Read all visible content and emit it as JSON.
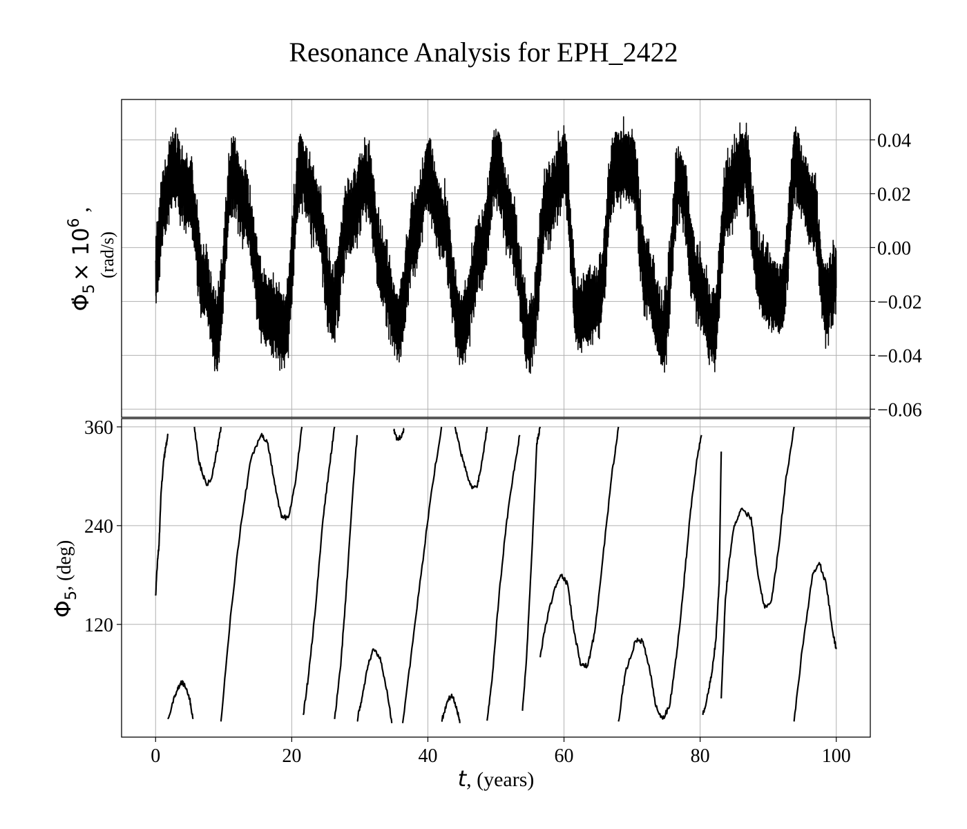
{
  "title": "Resonance Analysis for EPH_2422",
  "chart_data": [
    {
      "type": "line",
      "panel": "top",
      "ylabel_symbol": "Φ̇",
      "ylabel_sub": "5",
      "ylabel_factor": "× 10",
      "ylabel_exp": "6",
      "ylabel_sep": ",",
      "ylabel_units": "(rad/s)",
      "y_axis_position": "right",
      "xlim": [
        -5,
        105
      ],
      "ylim": [
        -0.063,
        0.055
      ],
      "yticks": [
        "0.04",
        "0.02",
        "0.00",
        "−0.02",
        "−0.04",
        "−0.06"
      ],
      "ytick_values": [
        0.04,
        0.02,
        0.0,
        -0.02,
        -0.04,
        -0.06
      ],
      "grid": true,
      "series": [
        {
          "color": "#000000",
          "style": "dense high-frequency oscillation",
          "center_curve": {
            "x": [
              0,
              1.3,
              2.5,
              5,
              7,
              9,
              11.3,
              13,
              16,
              19,
              21.3,
              23.5,
              26,
              28.5,
              31,
              33.5,
              35.5,
              38,
              40,
              42,
              45,
              48,
              50,
              52,
              55,
              57.5,
              60,
              62,
              65,
              67.5,
              70,
              72,
              74.5,
              77,
              79.5,
              82,
              84,
              86.5,
              89,
              92,
              94,
              96.5,
              98.5,
              100
            ],
            "y": [
              -0.008,
              0.018,
              0.03,
              0.02,
              -0.012,
              -0.03,
              0.027,
              0.016,
              -0.023,
              -0.03,
              0.028,
              0.015,
              -0.02,
              0.012,
              0.025,
              -0.01,
              -0.03,
              0.005,
              0.026,
              0.01,
              -0.03,
              0.0,
              0.03,
              0.01,
              -0.033,
              0.015,
              0.03,
              -0.025,
              -0.02,
              0.03,
              0.03,
              -0.01,
              -0.032,
              0.025,
              -0.012,
              -0.03,
              0.02,
              0.031,
              -0.012,
              -0.02,
              0.03,
              0.015,
              -0.02,
              -0.01
            ]
          },
          "envelope_halfwidth": 0.015,
          "extremes": {
            "max": 0.049,
            "min": -0.058
          }
        }
      ]
    },
    {
      "type": "line",
      "panel": "bottom",
      "xlabel_symbol": "t",
      "xlabel_units": ", (years)",
      "ylabel_symbol": "Φ",
      "ylabel_sub": "5",
      "ylabel_units": ", (deg)",
      "xlim": [
        -5,
        105
      ],
      "ylim": [
        -17,
        370
      ],
      "xticks": [
        "0",
        "20",
        "40",
        "60",
        "80",
        "100"
      ],
      "xtick_values": [
        0,
        20,
        40,
        60,
        80,
        100
      ],
      "yticks": [
        "360",
        "240",
        "120"
      ],
      "ytick_values": [
        360,
        240,
        120
      ],
      "grid": true,
      "series": [
        {
          "color": "#000000",
          "segments": [
            {
              "x": [
                0,
                0.3,
                0.5,
                0.8,
                1.2,
                1.6,
                1.8
              ],
              "y": [
                155,
                200,
                215,
                280,
                320,
                340,
                350
              ]
            },
            {
              "x": [
                1.8,
                2.5,
                3.2,
                3.8,
                4.3,
                5.0,
                5.5
              ],
              "y": [
                5,
                25,
                40,
                50,
                45,
                30,
                5
              ]
            },
            {
              "x": [
                5.7,
                6.3,
                7.0,
                7.6,
                8.3,
                9.0,
                9.6
              ],
              "y": [
                360,
                320,
                300,
                290,
                300,
                330,
                360
              ]
            },
            {
              "x": [
                9.6,
                11,
                12.5,
                14,
                15.5,
                16.5,
                17.5,
                18.5,
                19.5,
                20.5,
                21.5
              ],
              "y": [
                2,
                130,
                240,
                320,
                350,
                340,
                290,
                250,
                250,
                290,
                360
              ]
            },
            {
              "x": [
                21.7,
                22.5,
                23.5,
                24.5,
                25.5,
                26.3
              ],
              "y": [
                10,
                60,
                140,
                240,
                310,
                360
              ]
            },
            {
              "x": [
                26.3,
                27.2,
                28.0,
                28.8,
                29.6
              ],
              "y": [
                5,
                70,
                160,
                260,
                350
              ]
            },
            {
              "x": [
                29.6,
                30.3,
                31.2,
                32.0,
                33.0,
                34.0,
                34.7
              ],
              "y": [
                3,
                30,
                70,
                90,
                80,
                40,
                0
              ]
            },
            {
              "x": [
                35.0,
                35.5,
                36.0,
                36.5
              ],
              "y": [
                355,
                345,
                347,
                358
              ]
            },
            {
              "x": [
                36.3,
                37.5,
                39.0,
                40.5,
                42.0
              ],
              "y": [
                0,
                80,
                180,
                280,
                360
              ]
            },
            {
              "x": [
                42.0,
                42.8,
                43.5,
                44.2,
                44.7
              ],
              "y": [
                2,
                25,
                35,
                20,
                0
              ]
            },
            {
              "x": [
                44.0,
                44.8,
                45.8,
                46.5,
                47.3,
                48.0,
                48.7
              ],
              "y": [
                360,
                330,
                300,
                285,
                290,
                320,
                360
              ]
            },
            {
              "x": [
                48.7,
                49.5,
                50.5,
                51.5,
                52.5,
                53.5
              ],
              "y": [
                3,
                60,
                160,
                240,
                300,
                350
              ]
            },
            {
              "x": [
                53.9,
                54.5,
                55.3,
                56.0,
                56.5
              ],
              "y": [
                15,
                80,
                210,
                340,
                360
              ]
            },
            {
              "x": [
                56.5,
                57.3,
                58.5,
                59.5,
                60.5,
                61.5,
                62.5,
                63.5,
                64.5,
                65.7,
                67.0,
                68.0
              ],
              "y": [
                80,
                120,
                160,
                180,
                170,
                110,
                70,
                70,
                110,
                200,
                300,
                360
              ]
            },
            {
              "x": [
                68.0,
                69.0,
                70.5,
                71.5,
                72.5,
                73.5,
                74.5,
                75.5,
                76.5,
                77.5,
                78.5,
                79.5,
                80.2
              ],
              "y": [
                2,
                60,
                100,
                100,
                70,
                20,
                5,
                20,
                80,
                160,
                250,
                320,
                350
              ]
            },
            {
              "x": [
                80.4,
                81.0,
                81.7,
                82.3,
                82.8,
                83.1
              ],
              "y": [
                10,
                30,
                60,
                100,
                170,
                330
              ]
            },
            {
              "x": [
                83.1,
                83.7,
                84.3,
                85.0,
                86.0,
                87.5,
                88.5,
                89.5,
                90.5,
                91.5,
                92.5,
                93.8
              ],
              "y": [
                30,
                150,
                200,
                240,
                260,
                250,
                180,
                140,
                150,
                210,
                290,
                360
              ]
            },
            {
              "x": [
                93.8,
                95.0,
                96.5,
                97.5,
                98.5,
                99.5,
                100
              ],
              "y": [
                2,
                90,
                180,
                195,
                170,
                110,
                90
              ]
            }
          ]
        }
      ]
    }
  ]
}
